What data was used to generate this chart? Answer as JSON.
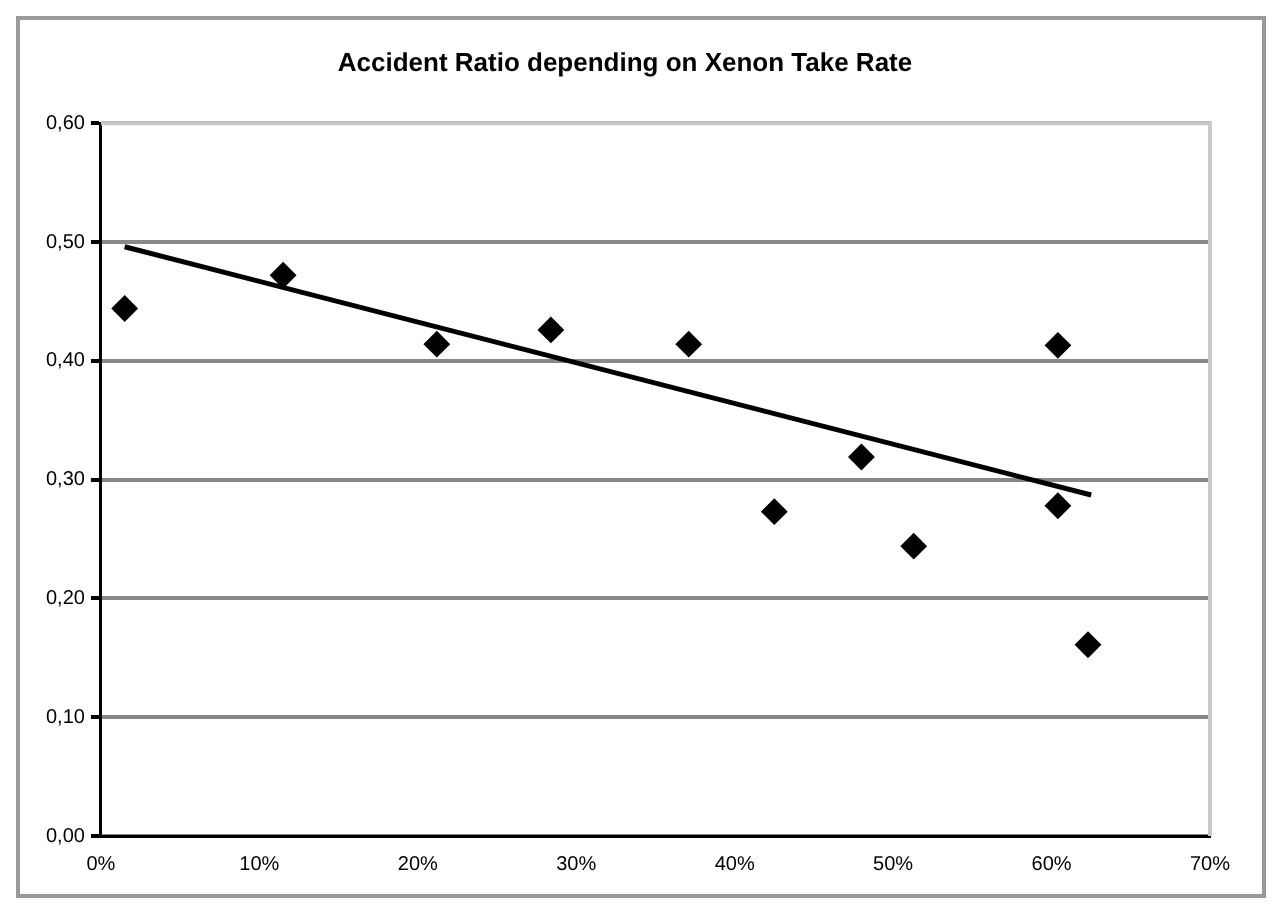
{
  "chart_data": {
    "type": "scatter",
    "title": "Accident Ratio depending on Xenon Take Rate",
    "series": [
      {
        "type": "scatter",
        "color": "#000000",
        "marker": "diamond",
        "x": [
          1.5,
          11.5,
          21.2,
          28.4,
          37.1,
          42.5,
          48.0,
          51.3,
          60.4,
          60.4,
          62.3
        ],
        "values": [
          0.444,
          0.472,
          0.414,
          0.426,
          0.414,
          0.273,
          0.319,
          0.244,
          0.413,
          0.278,
          0.161
        ]
      },
      {
        "type": "line",
        "color": "#000000",
        "marker": "none",
        "x": [
          1.5,
          62.5
        ],
        "values": [
          0.496,
          0.287
        ]
      }
    ],
    "xlim": [
      0,
      70
    ],
    "xticks": [
      {
        "value": 0,
        "label": "0%"
      },
      {
        "value": 10,
        "label": "10%"
      },
      {
        "value": 20,
        "label": "20%"
      },
      {
        "value": 30,
        "label": "30%"
      },
      {
        "value": 40,
        "label": "40%"
      },
      {
        "value": 50,
        "label": "50%"
      },
      {
        "value": 60,
        "label": "60%"
      },
      {
        "value": 70,
        "label": "70%"
      }
    ],
    "ylim": [
      0,
      0.6
    ],
    "yticks": [
      {
        "value": 0,
        "label": "0,00"
      },
      {
        "value": 0.1,
        "label": "0,10"
      },
      {
        "value": 0.2,
        "label": "0,20"
      },
      {
        "value": 0.3,
        "label": "0,30"
      },
      {
        "value": 0.4,
        "label": "0,40"
      },
      {
        "value": 0.5,
        "label": "0,50"
      },
      {
        "value": 0.6,
        "label": "0,60"
      }
    ],
    "grid": "y",
    "legend": false
  }
}
